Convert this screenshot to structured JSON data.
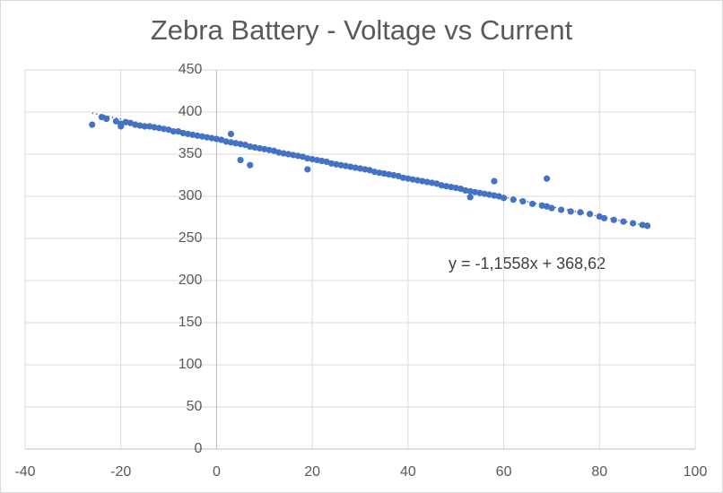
{
  "chart_data": {
    "type": "scatter",
    "title": "Zebra Battery - Voltage vs Current",
    "annotation": "y = -1,1558x + 368,62",
    "xlim": [
      -40,
      100
    ],
    "xticks": [
      -40,
      -20,
      0,
      20,
      40,
      60,
      80,
      100
    ],
    "ylim": [
      0,
      450
    ],
    "yticks": [
      0,
      50,
      100,
      150,
      200,
      250,
      300,
      350,
      400,
      450
    ],
    "grid": true,
    "series": [
      {
        "color": "#4472c4",
        "x": [
          -26,
          -24,
          -23,
          -21,
          -20,
          -19,
          -18,
          -17,
          -16,
          -15,
          -14,
          -13,
          -12,
          -11,
          -10,
          -9,
          -8,
          -7,
          -6,
          -5,
          -4,
          -3,
          -2,
          -1,
          0,
          1,
          2,
          3,
          4,
          5,
          6,
          7,
          8,
          9,
          10,
          11,
          12,
          13,
          14,
          15,
          16,
          17,
          18,
          19,
          20,
          21,
          22,
          23,
          24,
          25,
          26,
          27,
          28,
          29,
          30,
          31,
          32,
          33,
          34,
          35,
          36,
          37,
          38,
          39,
          40,
          41,
          42,
          43,
          44,
          45,
          46,
          47,
          48,
          49,
          50,
          51,
          52,
          53,
          54,
          55,
          56,
          57,
          58,
          59,
          60,
          62,
          64,
          66,
          68,
          69,
          70,
          72,
          74,
          76,
          78,
          80,
          81,
          83,
          85,
          87,
          89,
          90,
          5,
          7,
          19,
          58,
          69,
          -20,
          3,
          53
        ],
        "values": [
          385,
          394,
          392,
          389,
          386,
          388,
          387,
          385,
          384,
          383,
          383,
          382,
          381,
          380,
          379,
          377,
          377,
          375,
          374,
          373,
          372,
          371,
          370,
          369,
          368,
          367,
          365,
          364,
          363,
          362,
          361,
          359,
          358,
          357,
          356,
          355,
          354,
          352,
          351,
          350,
          349,
          348,
          347,
          345,
          344,
          343,
          342,
          341,
          339,
          338,
          337,
          336,
          335,
          334,
          333,
          332,
          331,
          329,
          328,
          327,
          326,
          325,
          324,
          322,
          321,
          320,
          319,
          318,
          317,
          316,
          315,
          313,
          312,
          311,
          310,
          309,
          307,
          306,
          305,
          304,
          303,
          302,
          301,
          300,
          298,
          296,
          294,
          291,
          289,
          288,
          286,
          284,
          282,
          281,
          279,
          276,
          274,
          272,
          270,
          268,
          266,
          265,
          343,
          337,
          332,
          318,
          321,
          383,
          374,
          299
        ]
      }
    ],
    "trendline": {
      "color": "#4472c4",
      "x": [
        -26,
        90
      ],
      "values": [
        398.7,
        264.6
      ]
    }
  }
}
